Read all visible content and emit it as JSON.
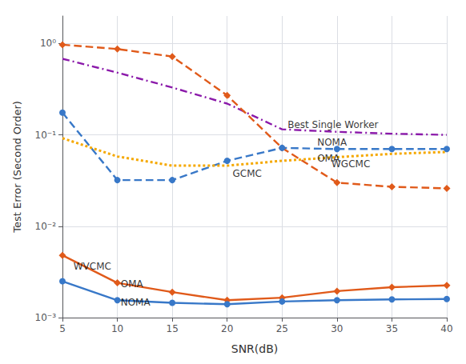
{
  "chart_data": {
    "type": "line",
    "xlabel": "SNR(dB)",
    "ylabel": "Test Error (Second Order)",
    "log": "y",
    "grid": true,
    "x": [
      5,
      10,
      15,
      20,
      25,
      30,
      35,
      40
    ],
    "xlim": [
      5,
      40
    ],
    "xticks": [
      5,
      10,
      15,
      20,
      25,
      30,
      35,
      40
    ],
    "ylim": [
      0.001,
      2.0
    ],
    "yticks": [
      {
        "value": 0.001,
        "label": "10⁻³"
      },
      {
        "value": 0.01,
        "label": "10⁻²"
      },
      {
        "value": 0.1,
        "label": "10⁻¹"
      },
      {
        "value": 1,
        "label": "10⁰"
      }
    ],
    "series": [
      {
        "color": "#8b1aaa",
        "line_style": "dashdot",
        "marker": "none",
        "values": [
          0.68,
          0.48,
          0.33,
          0.22,
          0.115,
          0.108,
          0.103,
          0.1
        ]
      },
      {
        "color": "#e05a1a",
        "line_style": "dashed",
        "marker": "diamond",
        "values": [
          0.97,
          0.87,
          0.72,
          0.27,
          0.072,
          0.03,
          0.027,
          0.026
        ]
      },
      {
        "color": "#3878c8",
        "line_style": "dashed",
        "marker": "circle",
        "values": [
          0.175,
          0.032,
          0.032,
          0.052,
          0.072,
          0.07,
          0.07,
          0.07
        ]
      },
      {
        "color": "#f5a800",
        "line_style": "dotted",
        "marker": "none",
        "values": [
          0.092,
          0.058,
          0.046,
          0.046,
          0.052,
          0.057,
          0.062,
          0.065
        ]
      },
      {
        "color": "#e05a1a",
        "line_style": "solid",
        "marker": "diamond",
        "values": [
          0.0048,
          0.0024,
          0.0019,
          0.00155,
          0.00165,
          0.00195,
          0.00215,
          0.00225
        ]
      },
      {
        "color": "#3878c8",
        "line_style": "solid",
        "marker": "circle",
        "values": [
          0.0025,
          0.00155,
          0.00145,
          0.0014,
          0.0015,
          0.00155,
          0.00158,
          0.0016
        ]
      }
    ],
    "annotations": [
      {
        "text": "Best Single Worker",
        "x": 25.5,
        "y": 0.128
      },
      {
        "text": "NOMA",
        "x": 28.2,
        "y": 0.082
      },
      {
        "text": "OMA",
        "x": 28.2,
        "y": 0.055
      },
      {
        "text": "WGCMC",
        "x": 29.5,
        "y": 0.048
      },
      {
        "text": "GCMC",
        "x": 20.5,
        "y": 0.038
      },
      {
        "text": "WVCMC",
        "x": 6.0,
        "y": 0.0036
      },
      {
        "text": "OMA",
        "x": 10.3,
        "y": 0.00235
      },
      {
        "text": "NOMA",
        "x": 10.3,
        "y": 0.00148
      }
    ]
  }
}
